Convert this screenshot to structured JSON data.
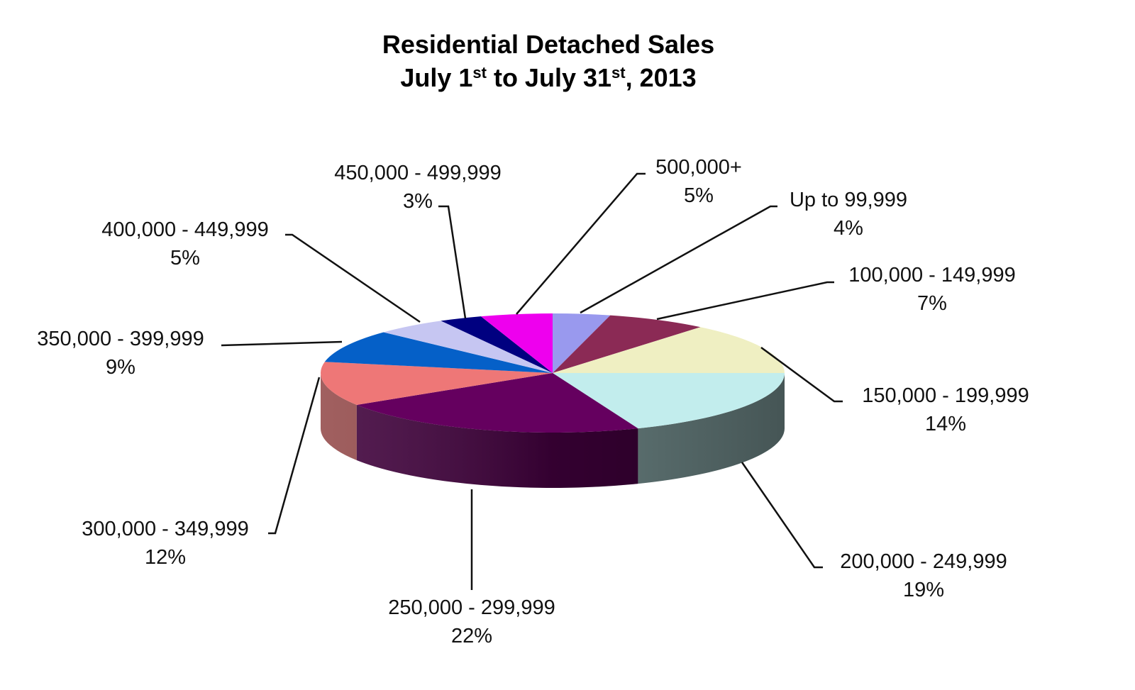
{
  "chart_data": {
    "type": "pie",
    "title": {
      "line1": "Residential Detached Sales",
      "line2_parts": [
        {
          "text": "July 1",
          "sup": false
        },
        {
          "text": "st",
          "sup": true
        },
        {
          "text": " to July 31",
          "sup": false
        },
        {
          "text": "st",
          "sup": true
        },
        {
          "text": ", 2013",
          "sup": false
        }
      ]
    },
    "slices": [
      {
        "label": "Up to 99,999",
        "value": 4,
        "value_label": "4%",
        "color": "#9999ee"
      },
      {
        "label": "100,000 - 149,999",
        "value": 7,
        "value_label": "7%",
        "color": "#8b2a55"
      },
      {
        "label": "150,000 - 199,999",
        "value": 14,
        "value_label": "14%",
        "color": "#efefc2"
      },
      {
        "label": "200,000 - 249,999",
        "value": 19,
        "value_label": "19%",
        "color": "#c2eded"
      },
      {
        "label": "250,000 - 299,999",
        "value": 22,
        "value_label": "22%",
        "color": "#65005f"
      },
      {
        "label": "300,000 - 349,999",
        "value": 12,
        "value_label": "12%",
        "color": "#ee7777"
      },
      {
        "label": "350,000 - 399,999",
        "value": 9,
        "value_label": "9%",
        "color": "#0560c8"
      },
      {
        "label": "400,000 - 449,999",
        "value": 5,
        "value_label": "5%",
        "color": "#c6c6f2"
      },
      {
        "label": "450,000 - 499,999",
        "value": 3,
        "value_label": "3%",
        "color": "#000080"
      },
      {
        "label": "500,000+",
        "value": 5,
        "value_label": "5%",
        "color": "#ee00ee"
      }
    ]
  }
}
